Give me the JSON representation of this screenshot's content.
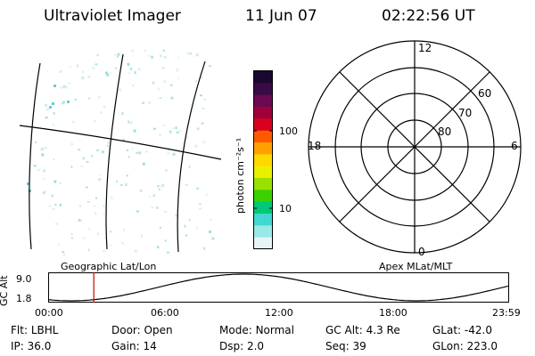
{
  "header": {
    "instrument": "Ultraviolet Imager",
    "date": "11 Jun 07",
    "time": "02:22:56 UT"
  },
  "colorbar": {
    "label": "photon cm⁻²s⁻¹",
    "ticks": [
      "100",
      "10"
    ],
    "colors": [
      "#1a0830",
      "#3a0a45",
      "#6a0a50",
      "#a0003a",
      "#d8001e",
      "#ff5a00",
      "#ffa000",
      "#ffd800",
      "#e8f000",
      "#9ae000",
      "#3cd000",
      "#00c878",
      "#40d8d0",
      "#9ae8e8",
      "#e6f4f4"
    ]
  },
  "polar": {
    "labels": {
      "top": "12",
      "left": "18",
      "right": "6",
      "bottom": "0"
    },
    "lat_labels": [
      "60",
      "70",
      "80"
    ]
  },
  "timeline": {
    "ylabel": "GC Alt",
    "ymax": "9.0",
    "ymin": "1.8",
    "left_label": "Geographic Lat/Lon",
    "right_label": "Apex MLat/MLT",
    "xticks": [
      "00:00",
      "06:00",
      "12:00",
      "18:00",
      "23:59"
    ],
    "cursor_time": "02:22:56",
    "cursor_color": "#d00000"
  },
  "info": {
    "row1": [
      {
        "label": "Flt:",
        "value": "LBHL"
      },
      {
        "label": "Door:",
        "value": "Open"
      },
      {
        "label": "Mode:",
        "value": "Normal"
      },
      {
        "label": "GC Alt:",
        "value": "4.3 Re"
      },
      {
        "label": "GLat:",
        "value": "-42.0"
      }
    ],
    "row2": [
      {
        "label": "IP:",
        "value": "36.0"
      },
      {
        "label": "Gain:",
        "value": "14"
      },
      {
        "label": "Dsp:",
        "value": "2.0"
      },
      {
        "label": "Seq:",
        "value": "39"
      },
      {
        "label": "GLon:",
        "value": "223.0"
      }
    ]
  }
}
